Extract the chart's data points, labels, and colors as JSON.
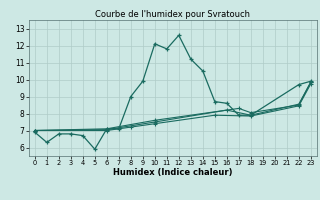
{
  "title": "Courbe de l'humidex pour Svratouch",
  "xlabel": "Humidex (Indice chaleur)",
  "bg_color": "#cde8e4",
  "grid_color": "#b0ccc8",
  "line_color": "#1a6b60",
  "xlim": [
    -0.5,
    23.5
  ],
  "ylim": [
    5.5,
    13.5
  ],
  "xticks": [
    0,
    1,
    2,
    3,
    4,
    5,
    6,
    7,
    8,
    9,
    10,
    11,
    12,
    13,
    14,
    15,
    16,
    17,
    18,
    19,
    20,
    21,
    22,
    23
  ],
  "yticks": [
    6,
    7,
    8,
    9,
    10,
    11,
    12,
    13
  ],
  "line1_x": [
    0,
    1,
    2,
    3,
    4,
    5,
    6,
    7,
    8,
    9,
    10,
    11,
    12,
    13,
    14,
    15,
    16,
    17,
    18,
    22,
    23
  ],
  "line1_y": [
    6.9,
    6.3,
    6.8,
    6.8,
    6.7,
    5.9,
    7.1,
    7.1,
    9.0,
    9.9,
    12.1,
    11.8,
    12.6,
    11.2,
    10.5,
    8.7,
    8.6,
    7.9,
    7.9,
    9.7,
    9.9
  ],
  "line2_x": [
    0,
    6,
    10,
    16,
    18,
    22,
    23
  ],
  "line2_y": [
    7.0,
    7.05,
    7.5,
    8.2,
    7.9,
    8.55,
    9.85
  ],
  "line3_x": [
    0,
    6,
    10,
    17,
    18,
    22,
    23
  ],
  "line3_y": [
    7.0,
    7.1,
    7.6,
    8.3,
    8.05,
    8.5,
    9.85
  ],
  "line4_x": [
    0,
    6,
    8,
    10,
    15,
    18,
    22,
    23
  ],
  "line4_y": [
    7.0,
    7.0,
    7.2,
    7.4,
    7.9,
    7.85,
    8.45,
    9.75
  ]
}
